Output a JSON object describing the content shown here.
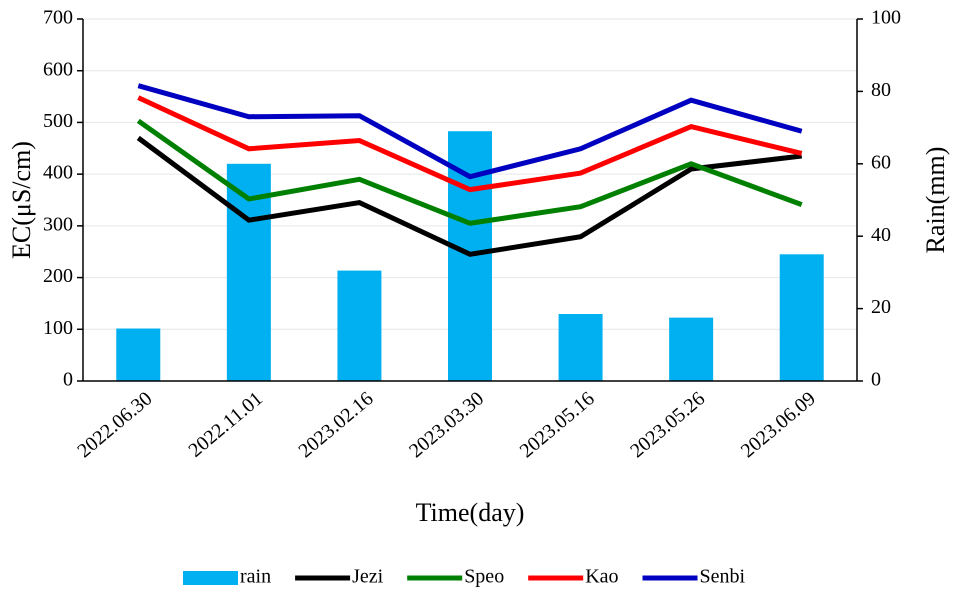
{
  "chart_data": {
    "type": "line",
    "x_label": "Time(day)",
    "y_label": "EC(μS/cm)",
    "y2_label": "Rain(mm)",
    "categories": [
      "2022.06.30",
      "2022.11.01",
      "2023.02.16",
      "2023.03.30",
      "2023.05.16",
      "2023.05.26",
      "2023.06.09"
    ],
    "series": [
      {
        "name": "rain",
        "color": "#00b0f0",
        "type": "bar",
        "axis": "y2",
        "values": [
          14.5,
          60,
          30.5,
          69,
          18.5,
          17.5,
          35
        ]
      },
      {
        "name": "Jezi",
        "color": "#000000",
        "values": [
          470,
          311,
          345,
          245,
          279,
          410,
          435
        ]
      },
      {
        "name": "Speo",
        "color": "#008000",
        "values": [
          503,
          352,
          390,
          305,
          337,
          420,
          341
        ]
      },
      {
        "name": "Kao",
        "color": "#ff0000",
        "values": [
          548,
          449,
          465,
          370,
          402,
          492,
          440
        ]
      },
      {
        "name": "Senbi",
        "color": "#0000c0",
        "values": [
          571,
          511,
          513,
          395,
          449,
          543,
          483
        ]
      }
    ],
    "ylim": [
      0,
      700
    ],
    "yticks": [
      0,
      100,
      200,
      300,
      400,
      500,
      600,
      700
    ],
    "y2lim": [
      0,
      100
    ],
    "y2ticks": [
      0,
      20,
      40,
      60,
      80,
      100
    ],
    "grid": true,
    "legend": "bottom"
  }
}
